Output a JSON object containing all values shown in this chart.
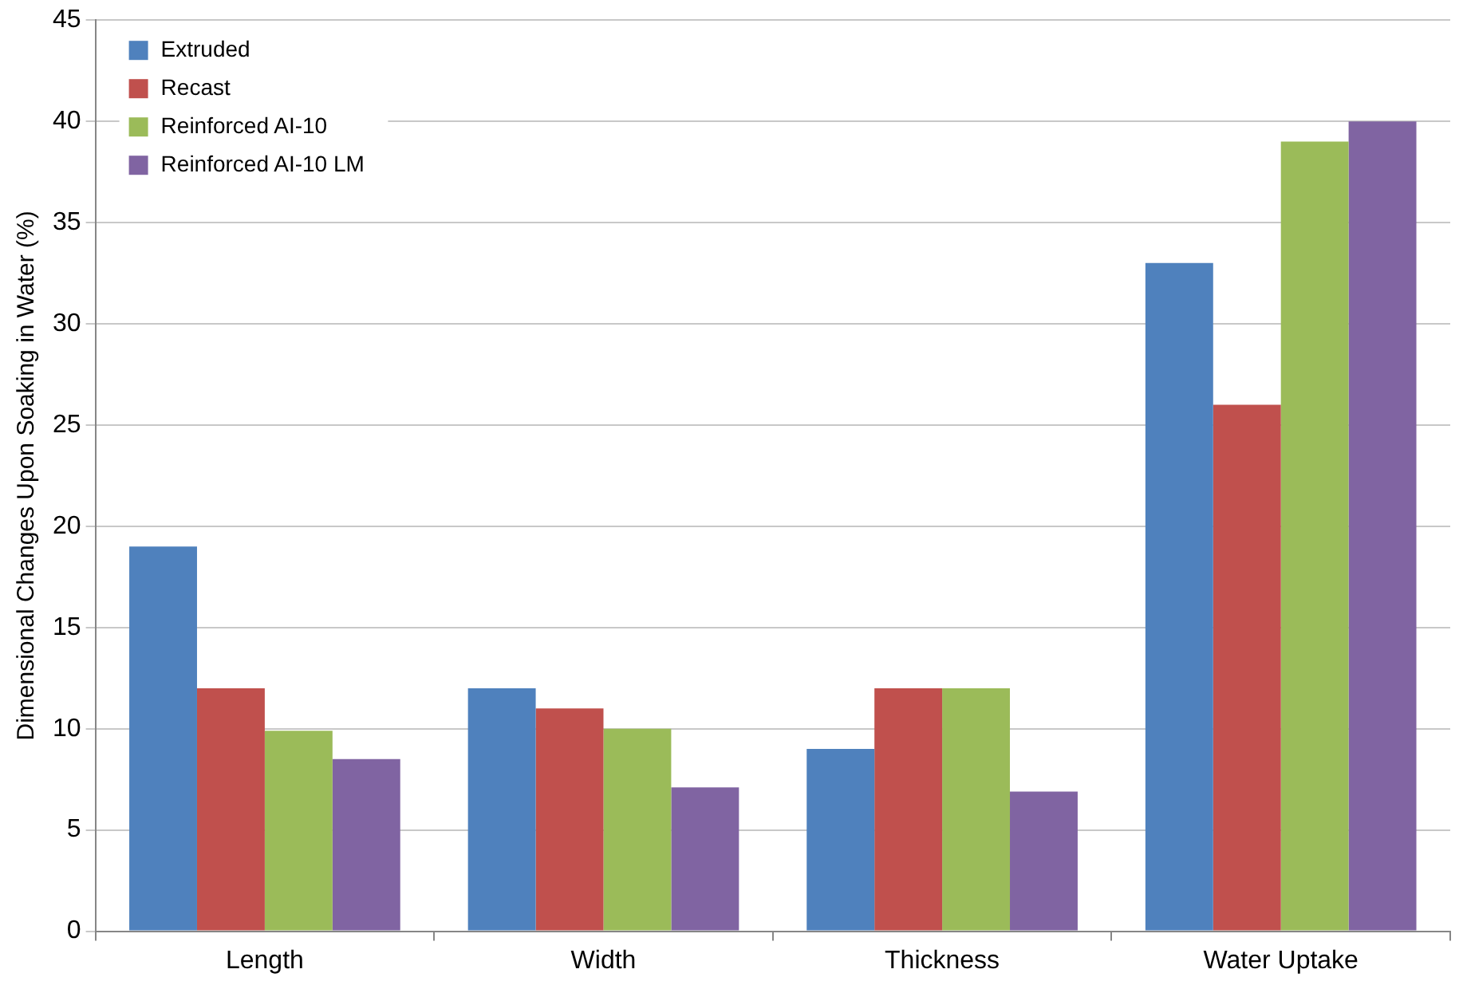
{
  "chart_data": {
    "type": "bar",
    "ylabel": "Dimensional Changes Upon Soaking in Water (%)",
    "categories": [
      "Length",
      "Width",
      "Thickness",
      "Water Uptake"
    ],
    "series": [
      {
        "name": "Extruded",
        "color": "#4f81bd",
        "values": [
          19,
          12,
          9,
          33
        ]
      },
      {
        "name": "Recast",
        "color": "#c0504d",
        "values": [
          12,
          11,
          12,
          26
        ]
      },
      {
        "name": "Reinforced AI-10",
        "color": "#9bbb59",
        "values": [
          9.9,
          10,
          12,
          39
        ]
      },
      {
        "name": "Reinforced AI-10 LM",
        "color": "#8064a2",
        "values": [
          8.5,
          7.1,
          6.9,
          40
        ]
      }
    ],
    "ylim": [
      0,
      45
    ],
    "yticks": [
      0,
      5,
      10,
      15,
      20,
      25,
      30,
      35,
      40,
      45
    ],
    "grid": "y",
    "legend": "top left"
  }
}
